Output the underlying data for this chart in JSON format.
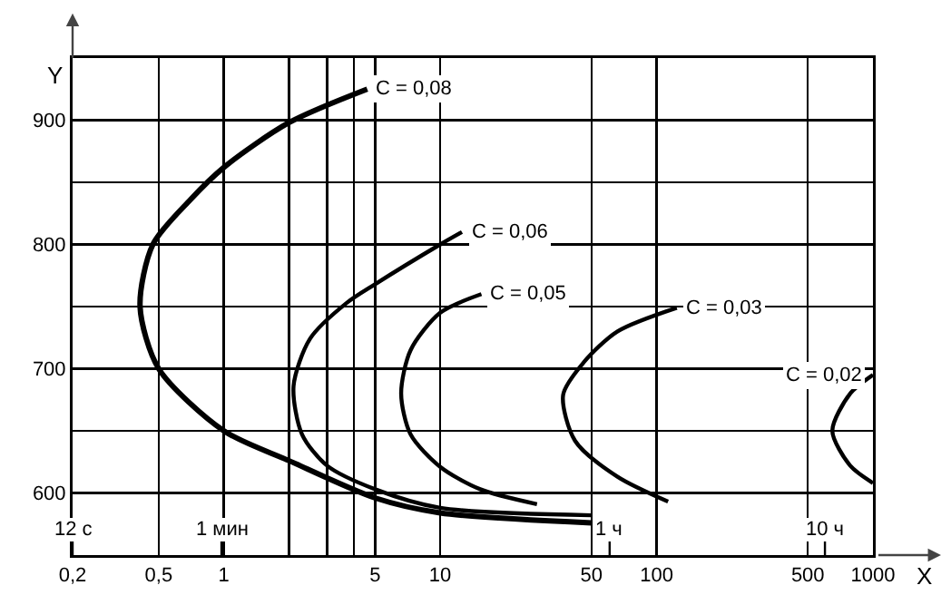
{
  "chart_data": {
    "type": "line",
    "xlabel": "X",
    "ylabel": "Y",
    "log": "x",
    "xlim": [
      0.2,
      1000
    ],
    "ylim": [
      550,
      950
    ],
    "xticks": [
      {
        "value": 0.2,
        "label": "0,2"
      },
      {
        "value": 0.5,
        "label": "0,5"
      },
      1,
      {
        "value": 2,
        "label": null
      },
      {
        "value": 3,
        "label": null
      },
      {
        "value": 4,
        "label": null
      },
      5,
      10,
      50,
      100,
      500,
      1000
    ],
    "yticks": [
      600,
      {
        "value": 650,
        "label": null
      },
      700,
      {
        "value": 750,
        "label": null
      },
      800,
      {
        "value": 850,
        "label": null
      },
      900,
      {
        "value": 950,
        "label": null
      }
    ],
    "grid": true,
    "legend": false,
    "marker": "none",
    "line_style": "solid",
    "series": [
      {
        "name": "C = 0,08",
        "color": "#000000",
        "x": [
          4.6,
          2,
          1,
          0.7,
          0.47,
          0.41,
          0.5,
          1,
          2,
          5,
          10,
          50
        ],
        "values": [
          925,
          898,
          862,
          836,
          800,
          750,
          700,
          650,
          626,
          596,
          584,
          576
        ]
      },
      {
        "name": "C = 0,06",
        "color": "#000000",
        "x": [
          12.6,
          10,
          5,
          3.7,
          2.5,
          2.1,
          2.3,
          3,
          5,
          10,
          50
        ],
        "values": [
          810,
          800,
          768,
          753,
          724,
          686,
          647,
          622,
          603,
          588,
          582
        ]
      },
      {
        "name": "C = 0,05",
        "color": "#000000",
        "x": [
          15.5,
          10,
          7.3,
          6.6,
          7.3,
          10,
          15.3,
          28
        ],
        "values": [
          760,
          745,
          715,
          680,
          647,
          621,
          603,
          591
        ]
      },
      {
        "name": "C = 0,03",
        "color": "#000000",
        "x": [
          124,
          66,
          46,
          37,
          42,
          66,
          113
        ],
        "values": [
          749,
          730,
          705,
          679,
          642,
          613,
          593
        ]
      },
      {
        "name": "C = 0,02",
        "color": "#000000",
        "x": [
          1000,
          785,
          649,
          785,
          1000
        ],
        "values": [
          695,
          680,
          650,
          622,
          608
        ]
      }
    ],
    "annotations": [
      "12 с",
      "1 мин",
      "1 ч",
      "10 ч"
    ]
  }
}
